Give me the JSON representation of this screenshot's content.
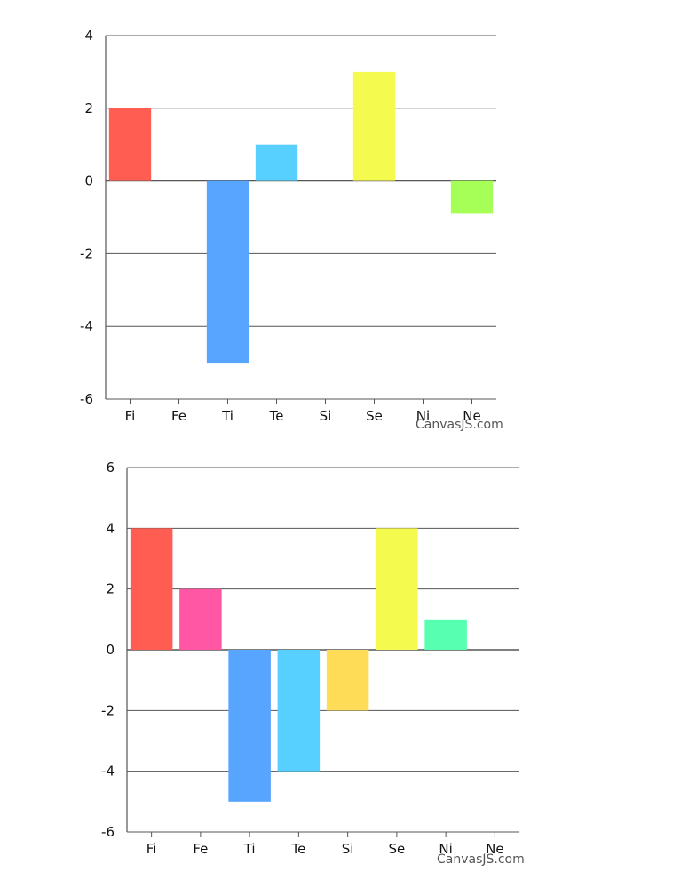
{
  "chart_data": [
    {
      "type": "bar",
      "categories": [
        "Fi",
        "Fe",
        "Ti",
        "Te",
        "Si",
        "Se",
        "Ni",
        "Ne"
      ],
      "values": [
        2,
        null,
        -5,
        1,
        null,
        3,
        null,
        -0.9
      ],
      "colors": [
        "#ff5c52",
        null,
        "#57a5ff",
        "#57cfff",
        null,
        "#f5fa4f",
        null,
        "#a6ff57"
      ],
      "ylim": [
        -6,
        4
      ],
      "y_ticks": [
        "4",
        "2",
        "0",
        "-2",
        "-4",
        "-6"
      ],
      "grid": true,
      "title": "",
      "xlabel": "",
      "ylabel": ""
    },
    {
      "type": "bar",
      "categories": [
        "Fi",
        "Fe",
        "Ti",
        "Te",
        "Si",
        "Se",
        "Ni",
        "Ne"
      ],
      "values": [
        4,
        2,
        -5,
        -4,
        -2,
        4,
        1,
        null
      ],
      "colors": [
        "#ff5c52",
        "#ff57a3",
        "#57a5ff",
        "#57cfff",
        "#ffdc57",
        "#f5fa4f",
        "#57ffb1",
        null
      ],
      "ylim": [
        -6,
        6
      ],
      "y_ticks": [
        "6",
        "4",
        "2",
        "0",
        "-2",
        "-4",
        "-6"
      ],
      "grid": true,
      "title": "",
      "xlabel": "",
      "ylabel": ""
    }
  ],
  "credits": {
    "top": "CanvasJS.com",
    "bottom": "CanvasJS.com"
  }
}
